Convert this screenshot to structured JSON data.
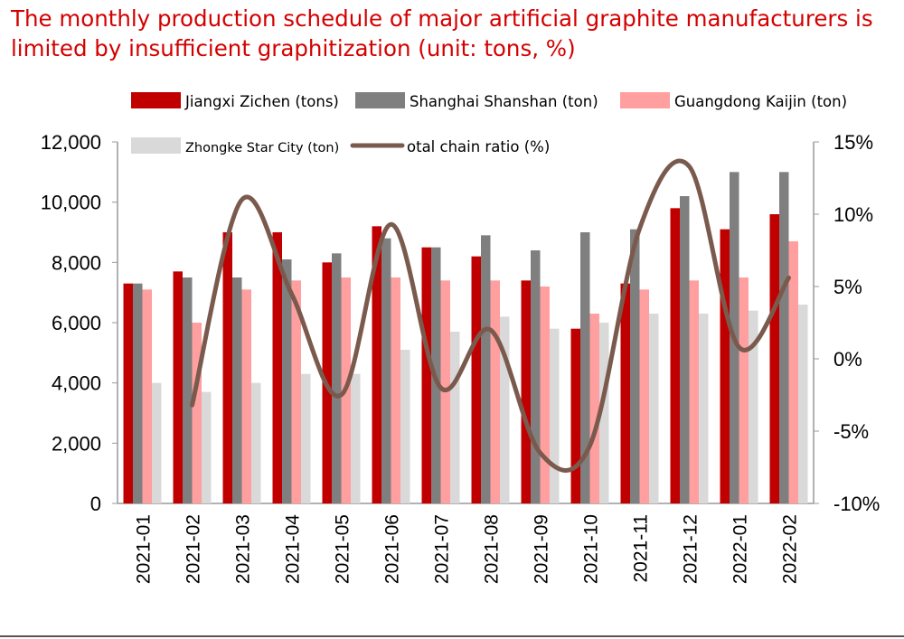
{
  "chart_data": {
    "type": "bar",
    "title": "The monthly production schedule of major artificial graphite manufacturers is limited by insufficient graphitization (unit: tons, %)",
    "categories": [
      "2021-01",
      "2021-02",
      "2021-03",
      "2021-04",
      "2021-05",
      "2021-06",
      "2021-07",
      "2021-08",
      "2021-09",
      "2021-10",
      "2021-11",
      "2021-12",
      "2022-01",
      "2022-02"
    ],
    "series": [
      {
        "name": "Jiangxi Zichen (tons)",
        "type": "bar",
        "axis": "left",
        "color": "#c00000",
        "values": [
          7300,
          7700,
          9000,
          9000,
          8000,
          9200,
          8500,
          8200,
          7400,
          5800,
          7300,
          9800,
          9100,
          9600
        ]
      },
      {
        "name": "Shanghai Shanshan (ton)",
        "type": "bar",
        "axis": "left",
        "color": "#7f7f7f",
        "values": [
          7300,
          7500,
          7500,
          8100,
          8300,
          8800,
          8500,
          8900,
          8400,
          9000,
          9100,
          10200,
          11000,
          11000
        ]
      },
      {
        "name": "Guangdong Kaijin (ton)",
        "type": "bar",
        "axis": "left",
        "color": "#ff9f9f",
        "values": [
          7100,
          6000,
          7100,
          7400,
          7500,
          7500,
          7400,
          7400,
          7200,
          6300,
          7100,
          7400,
          7500,
          8700
        ]
      },
      {
        "name": "Zhongke Star City (ton)",
        "type": "bar",
        "axis": "left",
        "color": "#d9d9d9",
        "values": [
          4000,
          3700,
          4000,
          4300,
          4300,
          5100,
          5700,
          6200,
          5800,
          6000,
          6300,
          6300,
          6400,
          6600
        ]
      },
      {
        "name": "otal chain ratio (%)",
        "type": "line",
        "axis": "right",
        "color": "#7b5a4e",
        "values": [
          null,
          -3.2,
          11,
          4.5,
          -2.5,
          9.3,
          -2,
          2,
          -6.5,
          -6,
          9,
          13.3,
          0.8,
          5.6
        ]
      }
    ],
    "ylim": [
      0,
      12000
    ],
    "yticks": [
      "0",
      "2,000",
      "4,000",
      "6,000",
      "8,000",
      "10,000",
      "12,000"
    ],
    "y2lim": [
      -10,
      15
    ],
    "y2ticks": [
      "-10%",
      "-5%",
      "0%",
      "5%",
      "10%",
      "15%"
    ],
    "legend": "top",
    "grid": false
  }
}
